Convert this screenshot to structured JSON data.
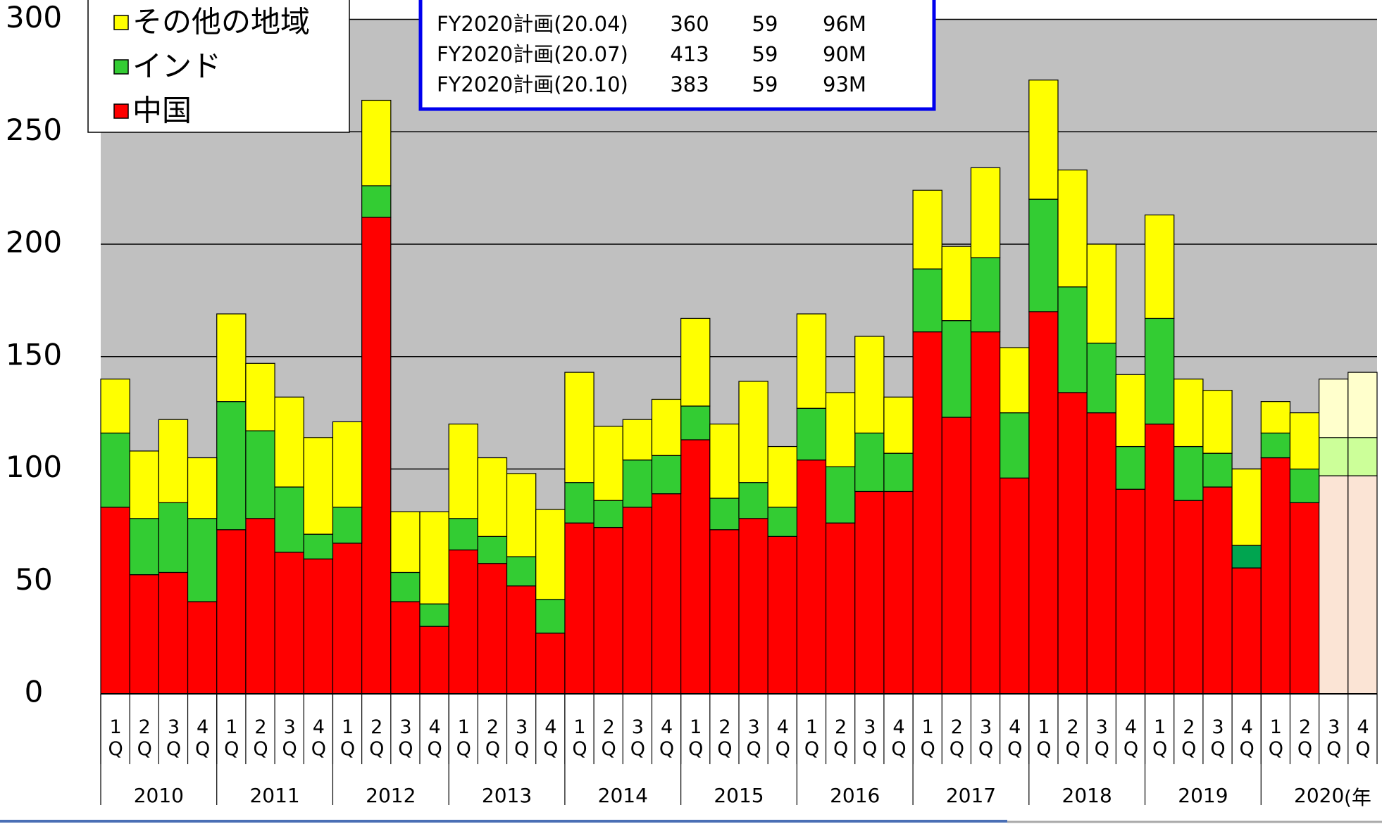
{
  "chart_data": {
    "type": "stacked_bar",
    "categories": [
      "1Q",
      "2Q",
      "3Q",
      "4Q",
      "1Q",
      "2Q",
      "3Q",
      "4Q",
      "1Q",
      "2Q",
      "3Q",
      "4Q",
      "1Q",
      "2Q",
      "3Q",
      "4Q",
      "1Q",
      "2Q",
      "3Q",
      "4Q",
      "1Q",
      "2Q",
      "3Q",
      "4Q",
      "1Q",
      "2Q",
      "3Q",
      "4Q",
      "1Q",
      "2Q",
      "3Q",
      "4Q",
      "1Q",
      "2Q",
      "3Q",
      "4Q",
      "1Q",
      "2Q",
      "3Q",
      "4Q",
      "1Q",
      "2Q",
      "3Q",
      "4Q"
    ],
    "years": [
      "2010",
      "2011",
      "2012",
      "2013",
      "2014",
      "2015",
      "2016",
      "2017",
      "2018",
      "2019",
      "2020"
    ],
    "x_unit": "(年",
    "series": [
      {
        "name": "中国",
        "color": "#ff0000",
        "colors": [
          "#ff0000",
          "#ff0000",
          "#ff0000",
          "#ff0000",
          "#ff0000",
          "#ff0000",
          "#ff0000",
          "#ff0000",
          "#ff0000",
          "#ff0000",
          "#ff0000",
          "#ff0000",
          "#ff0000",
          "#ff0000",
          "#ff0000",
          "#ff0000",
          "#ff0000",
          "#ff0000",
          "#ff0000",
          "#ff0000",
          "#ff0000",
          "#ff0000",
          "#ff0000",
          "#ff0000",
          "#ff0000",
          "#ff0000",
          "#ff0000",
          "#ff0000",
          "#ff0000",
          "#ff0000",
          "#ff0000",
          "#ff0000",
          "#ff0000",
          "#ff0000",
          "#ff0000",
          "#ff0000",
          "#ff0000",
          "#ff0000",
          "#ff0000",
          "#ff0000",
          "#ff0000",
          "#ff0000",
          "#fbe4d5",
          "#fbe4d5"
        ],
        "values": [
          83,
          53,
          54,
          41,
          73,
          78,
          63,
          60,
          67,
          212,
          41,
          30,
          64,
          58,
          48,
          27,
          76,
          74,
          83,
          89,
          113,
          73,
          78,
          70,
          104,
          76,
          90,
          90,
          161,
          123,
          161,
          96,
          170,
          134,
          125,
          91,
          120,
          86,
          92,
          56,
          105,
          85,
          97,
          97
        ]
      },
      {
        "name": "インド",
        "color": "#33cc33",
        "colors": [
          "#33cc33",
          "#33cc33",
          "#33cc33",
          "#33cc33",
          "#33cc33",
          "#33cc33",
          "#33cc33",
          "#33cc33",
          "#33cc33",
          "#33cc33",
          "#33cc33",
          "#33cc33",
          "#33cc33",
          "#33cc33",
          "#33cc33",
          "#33cc33",
          "#33cc33",
          "#33cc33",
          "#33cc33",
          "#33cc33",
          "#33cc33",
          "#33cc33",
          "#33cc33",
          "#33cc33",
          "#33cc33",
          "#33cc33",
          "#33cc33",
          "#33cc33",
          "#33cc33",
          "#33cc33",
          "#33cc33",
          "#33cc33",
          "#33cc33",
          "#33cc33",
          "#33cc33",
          "#33cc33",
          "#33cc33",
          "#33cc33",
          "#33cc33",
          "#00a550",
          "#33cc33",
          "#33cc33",
          "#ccff99",
          "#ccff99"
        ],
        "values": [
          33,
          25,
          31,
          37,
          57,
          39,
          29,
          11,
          16,
          14,
          13,
          10,
          14,
          12,
          13,
          15,
          18,
          12,
          21,
          17,
          15,
          14,
          16,
          13,
          23,
          25,
          26,
          17,
          28,
          43,
          33,
          29,
          50,
          47,
          31,
          19,
          47,
          24,
          15,
          10,
          11,
          15,
          17,
          17
        ]
      },
      {
        "name": "その他の地域",
        "color": "#ffff00",
        "colors": [
          "#ffff00",
          "#ffff00",
          "#ffff00",
          "#ffff00",
          "#ffff00",
          "#ffff00",
          "#ffff00",
          "#ffff00",
          "#ffff00",
          "#ffff00",
          "#ffff00",
          "#ffff00",
          "#ffff00",
          "#ffff00",
          "#ffff00",
          "#ffff00",
          "#ffff00",
          "#ffff00",
          "#ffff00",
          "#ffff00",
          "#ffff00",
          "#ffff00",
          "#ffff00",
          "#ffff00",
          "#ffff00",
          "#ffff00",
          "#ffff00",
          "#ffff00",
          "#ffff00",
          "#ffff00",
          "#ffff00",
          "#ffff00",
          "#ffff00",
          "#ffff00",
          "#ffff00",
          "#ffff00",
          "#ffff00",
          "#ffff00",
          "#ffff00",
          "#ffff00",
          "#ffff00",
          "#ffff00",
          "#ffffcc",
          "#ffffcc"
        ],
        "values": [
          24,
          30,
          37,
          27,
          39,
          30,
          40,
          43,
          38,
          38,
          27,
          41,
          42,
          35,
          37,
          40,
          49,
          33,
          18,
          25,
          39,
          33,
          45,
          27,
          42,
          33,
          43,
          25,
          35,
          33,
          40,
          29,
          53,
          52,
          44,
          32,
          46,
          30,
          28,
          34,
          14,
          25,
          26,
          29
        ]
      }
    ],
    "ylim": [
      0,
      300
    ],
    "yticks": [
      0,
      50,
      100,
      150,
      200,
      250,
      300
    ],
    "grid": true,
    "legend": "upper left"
  },
  "table": {
    "rows": [
      [
        "FY2020計画(20.04)",
        "360",
        "59",
        "96M"
      ],
      [
        "FY2020計画(20.07)",
        "413",
        "59",
        "90M"
      ],
      [
        "FY2020計画(20.10)",
        "383",
        "59",
        "93M"
      ]
    ]
  }
}
